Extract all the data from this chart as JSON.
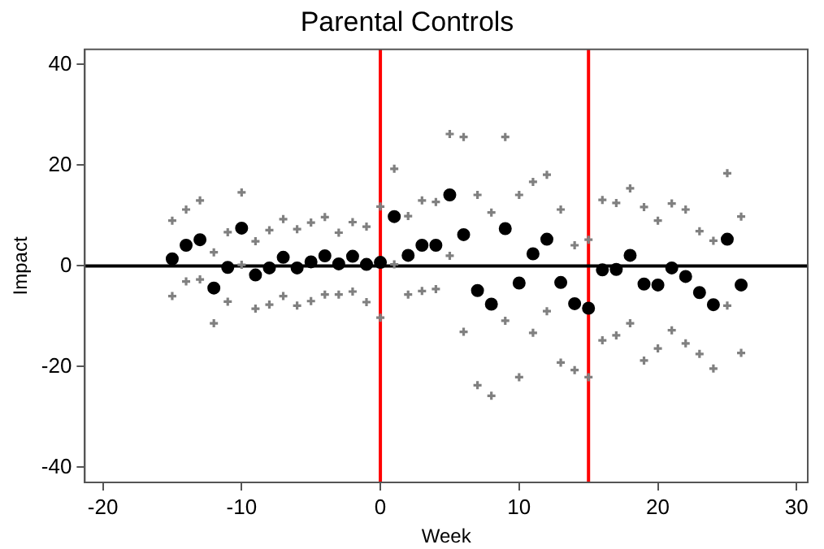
{
  "chart_data": {
    "type": "scatter",
    "title": "Parental Controls",
    "xlabel": "Week",
    "ylabel": "Impact",
    "x": [
      -15,
      -14,
      -13,
      -12,
      -11,
      -10,
      -9,
      -8,
      -7,
      -6,
      -5,
      -4,
      -3,
      -2,
      -1,
      0,
      1,
      2,
      3,
      4,
      5,
      6,
      7,
      8,
      9,
      10,
      11,
      12,
      13,
      14,
      15,
      16,
      17,
      18,
      19,
      20,
      21,
      22,
      23,
      24,
      25,
      26
    ],
    "values": [
      1.4,
      4.1,
      5.2,
      -4.4,
      -0.3,
      7.5,
      -1.8,
      -0.4,
      1.7,
      -0.4,
      0.8,
      2.0,
      0.4,
      1.9,
      0.3,
      0.7,
      9.8,
      2.1,
      4.1,
      4.1,
      14.1,
      6.2,
      -4.9,
      -7.6,
      7.4,
      -3.4,
      2.4,
      5.3,
      -3.3,
      -7.5,
      -8.4,
      -0.8,
      -0.7,
      2.1,
      -3.6,
      -3.8,
      -0.4,
      -2.1,
      -5.3,
      -7.7,
      5.3,
      -3.8
    ],
    "errors": [
      [
        -6.8,
        9.8
      ],
      [
        -3.9,
        12
      ],
      [
        -3.5,
        13.8
      ],
      [
        -12.2,
        3.5
      ],
      [
        -7.9,
        7.5
      ],
      [
        -0.6,
        15.4
      ],
      [
        -9.3,
        5.7
      ],
      [
        -8.5,
        7.9
      ],
      [
        -6.8,
        10.1
      ],
      [
        -8.7,
        8.1
      ],
      [
        -7.8,
        9.4
      ],
      [
        -6.5,
        10.5
      ],
      [
        -6.5,
        7.4
      ],
      [
        -5.9,
        9.5
      ],
      [
        -8,
        8.6
      ],
      [
        -11.1,
        12.6
      ],
      [
        -0.5,
        20.1
      ],
      [
        -6.5,
        10.7
      ],
      [
        -5.8,
        13.8
      ],
      [
        -5.4,
        13.5
      ],
      [
        1.2,
        27
      ],
      [
        -13.9,
        26.4
      ],
      [
        -24.5,
        14.9
      ],
      [
        -26.6,
        11.4
      ],
      [
        -11.7,
        26.4
      ],
      [
        -22.9,
        14.9
      ],
      [
        -14.1,
        17.5
      ],
      [
        -9.8,
        18.9
      ],
      [
        -20,
        12
      ],
      [
        -21.5,
        4.9
      ],
      [
        -22.9,
        6
      ],
      [
        -15.6,
        13.9
      ],
      [
        -14.6,
        13.3
      ],
      [
        -12.2,
        16.2
      ],
      [
        -19.6,
        12.5
      ],
      [
        -17.2,
        9.8
      ],
      [
        -13.6,
        13.2
      ],
      [
        -16.2,
        12
      ],
      [
        -18.3,
        7.7
      ],
      [
        -21.2,
        5.8
      ],
      [
        -8.7,
        19.2
      ],
      [
        -18.1,
        10.6
      ]
    ],
    "color": "#000000",
    "marker": "circle",
    "xlim": [
      -21.3,
      30.8
    ],
    "xticks": [
      -20,
      -10,
      0,
      10,
      20,
      30
    ],
    "ylim": [
      -43,
      43
    ],
    "yticks": [
      -40,
      -20,
      0,
      20,
      40
    ],
    "ref_lines": [
      {
        "axis": "x",
        "value": 0,
        "color": "#ff0000"
      },
      {
        "axis": "x",
        "value": 15,
        "color": "#ff0000"
      },
      {
        "axis": "y",
        "value": 0,
        "color": "#000000"
      }
    ],
    "grid": false,
    "legend": false
  }
}
